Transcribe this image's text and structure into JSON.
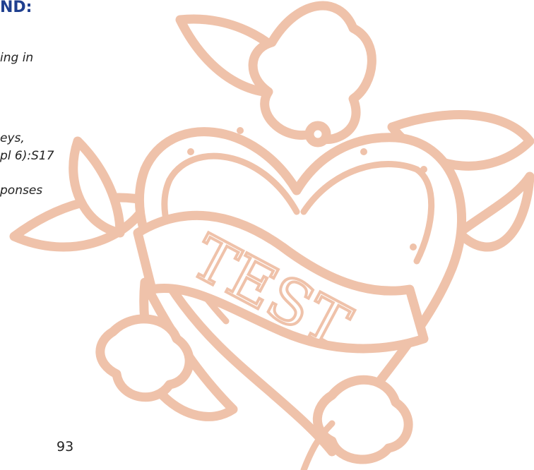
{
  "text": {
    "heading": "ND:",
    "lines": [
      "ing in",
      "eys,",
      "pl 6):S17",
      "ponses"
    ],
    "page_number": "93"
  },
  "illustration": {
    "banner_text": "TEST"
  }
}
